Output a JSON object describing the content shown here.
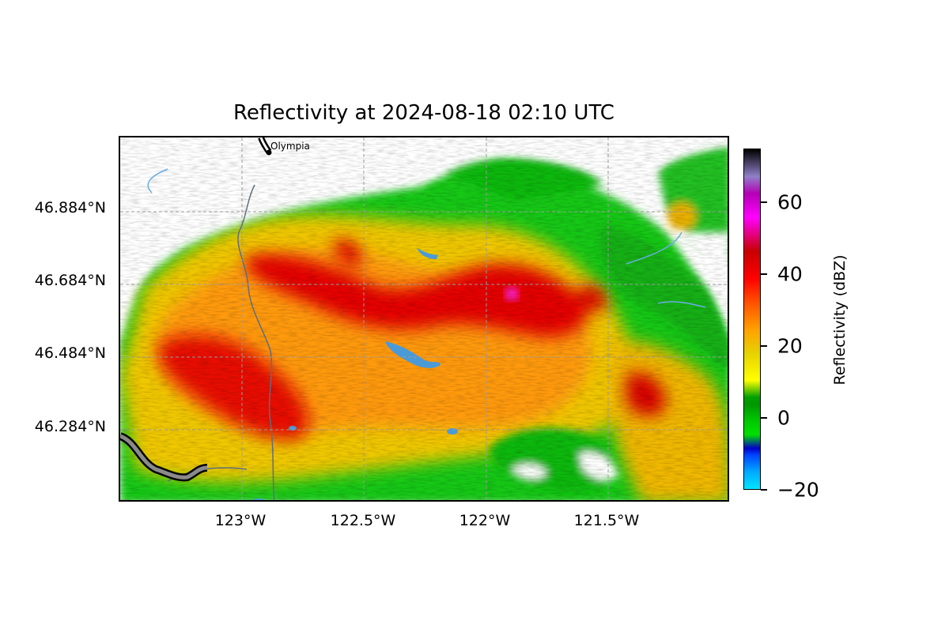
{
  "title": "Reflectivity at 2024-08-18 02:10 UTC",
  "map": {
    "y_ticks": [
      {
        "label": "46.884°N",
        "lat": 46.884
      },
      {
        "label": "46.684°N",
        "lat": 46.684
      },
      {
        "label": "46.484°N",
        "lat": 46.484
      },
      {
        "label": "46.284°N",
        "lat": 46.284
      }
    ],
    "x_ticks": [
      {
        "label": "123°W",
        "lon": -123.0
      },
      {
        "label": "122.5°W",
        "lon": -122.5
      },
      {
        "label": "122°W",
        "lon": -122.0
      },
      {
        "label": "121.5°W",
        "lon": -121.5
      }
    ],
    "extent": {
      "lon": [
        -123.52,
        -121.02
      ],
      "lat": [
        46.084,
        47.092
      ]
    },
    "city": {
      "name": "Olympia",
      "lat": 47.04,
      "lon": -122.9
    }
  },
  "colorbar": {
    "label": "Reflectivity (dBZ)",
    "range": [
      -20,
      75
    ],
    "ticks": [
      {
        "label": "−20",
        "value": -20
      },
      {
        "label": "0",
        "value": 0
      },
      {
        "label": "20",
        "value": 20
      },
      {
        "label": "40",
        "value": 40
      },
      {
        "label": "60",
        "value": 60
      }
    ]
  }
}
